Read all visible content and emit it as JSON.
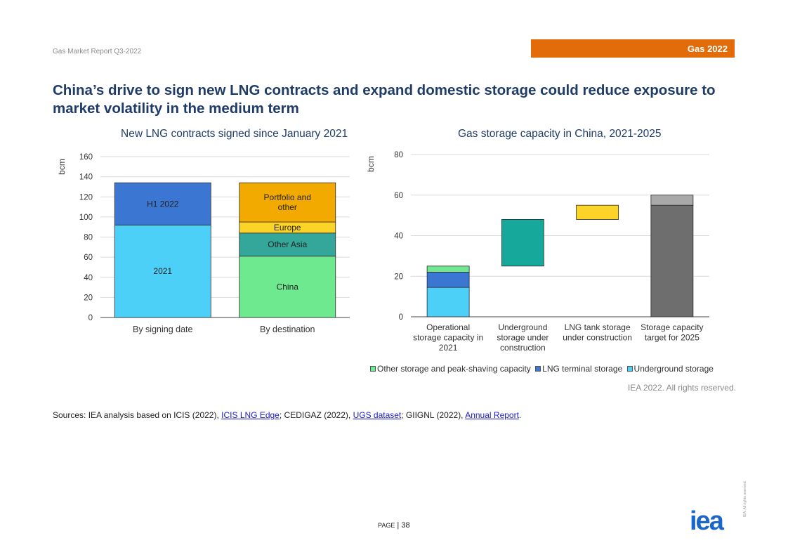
{
  "header": {
    "report_name": "Gas Market Report Q3-2022",
    "section_banner": "Gas 2022",
    "section_banner_color": "#e36c0a"
  },
  "headline": "China’s drive to sign new LNG contracts and expand domestic storage could reduce exposure to market volatility in the medium term",
  "chart_data": [
    {
      "type": "bar",
      "stacked": true,
      "title": "New LNG contracts signed since January 2021",
      "ylabel": "bcm",
      "xlabel": "",
      "ylim": [
        0,
        160
      ],
      "yticks": [
        0,
        20,
        40,
        60,
        80,
        100,
        120,
        140,
        160
      ],
      "grid": true,
      "categories": [
        "By signing date",
        "By destination"
      ],
      "series": [
        {
          "name": "2021",
          "color": "#4dd0f7",
          "values": [
            92,
            null
          ]
        },
        {
          "name": "H1 2022",
          "color": "#3a76d2",
          "values": [
            42,
            null
          ]
        },
        {
          "name": "China",
          "color": "#6ee98f",
          "values": [
            null,
            61
          ]
        },
        {
          "name": "Other Asia",
          "color": "#35a79a",
          "values": [
            null,
            23
          ]
        },
        {
          "name": "Europe",
          "color": "#fcd327",
          "values": [
            null,
            11
          ]
        },
        {
          "name": "Portfolio and other",
          "color": "#f2a900",
          "values": [
            null,
            39
          ]
        }
      ]
    },
    {
      "type": "bar",
      "subtype": "waterfall",
      "title": "Gas storage capacity in China, 2021-2025",
      "ylabel": "bcm",
      "xlabel": "",
      "ylim": [
        0,
        80
      ],
      "yticks": [
        0,
        20,
        40,
        60,
        80
      ],
      "grid": true,
      "legend_position": "bottom",
      "legend": [
        {
          "name": "Other storage and peak-shaving capacity",
          "color": "#6ee98f"
        },
        {
          "name": "LNG terminal storage",
          "color": "#3a76d2"
        },
        {
          "name": "Underground storage",
          "color": "#4dd0f7"
        }
      ],
      "categories": [
        "Operational storage capacity in 2021",
        "Underground storage under construction",
        "LNG tank storage under construction",
        "Storage capacity target for 2025"
      ],
      "category_lines": [
        [
          "Operational",
          "storage capacity in",
          "2021"
        ],
        [
          "Underground",
          "storage under",
          "construction"
        ],
        [
          "LNG tank storage",
          "under construction"
        ],
        [
          "Storage capacity",
          "target for 2025"
        ]
      ],
      "segments": [
        {
          "category": 0,
          "from": 0,
          "to": 14.5,
          "color": "#4dd0f7"
        },
        {
          "category": 0,
          "from": 14.5,
          "to": 22,
          "color": "#3a76d2"
        },
        {
          "category": 0,
          "from": 22,
          "to": 25,
          "color": "#6ee98f"
        },
        {
          "category": 1,
          "from": 25,
          "to": 48,
          "color": "#16a99b"
        },
        {
          "category": 2,
          "from": 48,
          "to": 55,
          "color": "#fcd327"
        },
        {
          "category": 3,
          "from": 0,
          "to": 55,
          "color": "#6e6e6e"
        },
        {
          "category": 3,
          "from": 55,
          "to": 60,
          "color": "#a9a9a9"
        }
      ]
    }
  ],
  "rights": "IEA 2022. All rights reserved.",
  "sources": {
    "prefix": "Sources: IEA analysis based on ICIS (2022), ",
    "link1": "ICIS LNG Edge",
    "part2": "; CEDIGAZ (2022), ",
    "link2": "UGS dataset",
    "part3": "; GIIGNL (2022), ",
    "link3": "Annual Report",
    "suffix": "."
  },
  "footer": {
    "page_label": "Page",
    "page_number": "| 38",
    "logo": "iea",
    "logo_color": "#1b66c9",
    "side_note": "IEA. All rights reserved."
  }
}
